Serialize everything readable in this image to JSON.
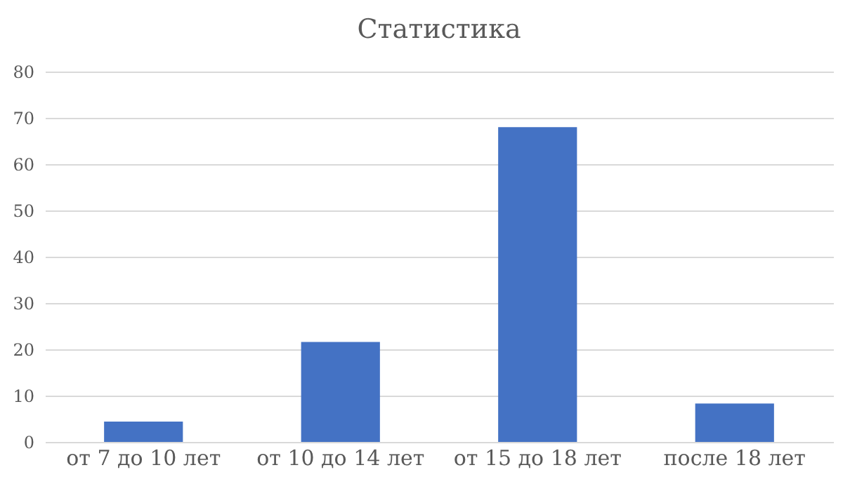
{
  "chart_data": {
    "type": "bar",
    "title": "Статистика",
    "categories": [
      "от 7 до 10 лет",
      "от 10 до 14 лет",
      "от 15 до 18 лет",
      "после 18 лет"
    ],
    "values": [
      4.4,
      21.6,
      68,
      8.3
    ],
    "color": "#4472c4",
    "ylim": [
      0,
      80
    ],
    "yticks": [
      0,
      10,
      20,
      30,
      40,
      50,
      60,
      70,
      80
    ],
    "grid": "y"
  }
}
